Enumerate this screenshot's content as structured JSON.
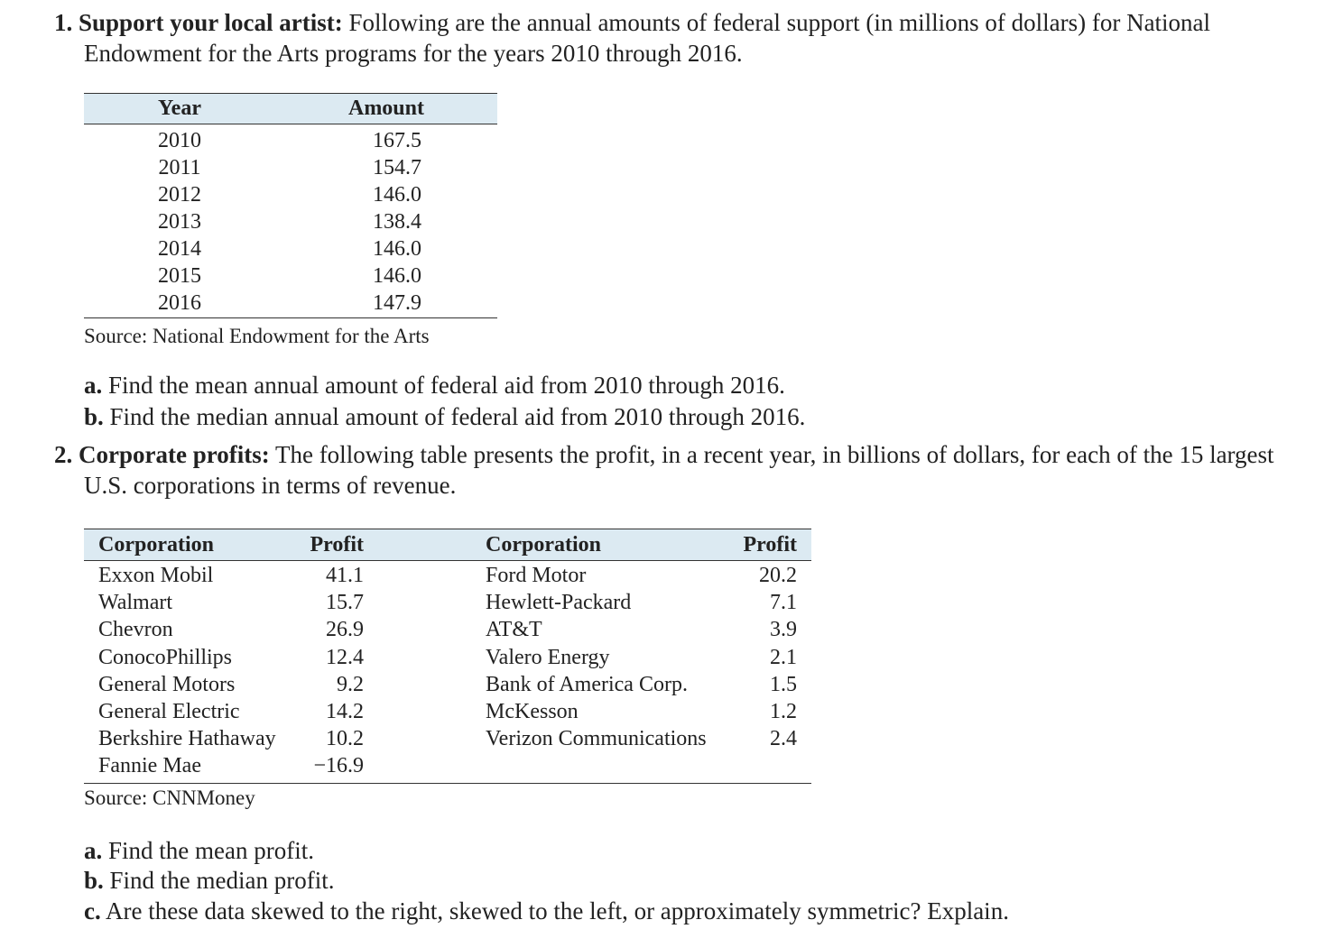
{
  "problem1": {
    "number": "1.",
    "title": "Support your local artist:",
    "text_line1": "Following are the annual amounts of federal support (in millions of dollars) for National",
    "text_line2": "Endowment for the Arts programs for the years 2010 through 2016.",
    "table": {
      "headers": [
        "Year",
        "Amount"
      ],
      "rows": [
        [
          "2010",
          "167.5"
        ],
        [
          "2011",
          "154.7"
        ],
        [
          "2012",
          "146.0"
        ],
        [
          "2013",
          "138.4"
        ],
        [
          "2014",
          "146.0"
        ],
        [
          "2015",
          "146.0"
        ],
        [
          "2016",
          "147.9"
        ]
      ]
    },
    "source": "Source: National Endowment for the Arts",
    "questions": [
      {
        "label": "a.",
        "text": "Find the mean annual amount of federal aid from 2010 through 2016."
      },
      {
        "label": "b.",
        "text": "Find the median annual amount of federal aid from 2010 through 2016."
      }
    ]
  },
  "problem2": {
    "number": "2.",
    "title": "Corporate profits:",
    "text_line1": "The following table presents the profit, in a recent year, in billions of dollars, for each of the 15 largest",
    "text_line2": "U.S. corporations in terms of revenue.",
    "table": {
      "headers": [
        "Corporation",
        "Profit",
        "Corporation",
        "Profit"
      ],
      "left_rows": [
        [
          "Exxon Mobil",
          "41.1"
        ],
        [
          "Walmart",
          "15.7"
        ],
        [
          "Chevron",
          "26.9"
        ],
        [
          "ConocoPhillips",
          "12.4"
        ],
        [
          "General Motors",
          "9.2"
        ],
        [
          "General Electric",
          "14.2"
        ],
        [
          "Berkshire Hathaway",
          "10.2"
        ],
        [
          "Fannie Mae",
          "−16.9"
        ]
      ],
      "right_rows": [
        [
          "Ford Motor",
          "20.2"
        ],
        [
          "Hewlett-Packard",
          "7.1"
        ],
        [
          "AT&T",
          "3.9"
        ],
        [
          "Valero Energy",
          "2.1"
        ],
        [
          "Bank of America Corp.",
          "1.5"
        ],
        [
          "McKesson",
          "1.2"
        ],
        [
          "Verizon Communications",
          "2.4"
        ]
      ]
    },
    "source": "Source: CNNMoney",
    "questions": [
      {
        "label": "a.",
        "text": "Find the mean profit."
      },
      {
        "label": "b.",
        "text": "Find the median profit."
      },
      {
        "label": "c.",
        "text": "Are these data skewed to the right, skewed to the left, or approximately symmetric? Explain."
      }
    ]
  }
}
